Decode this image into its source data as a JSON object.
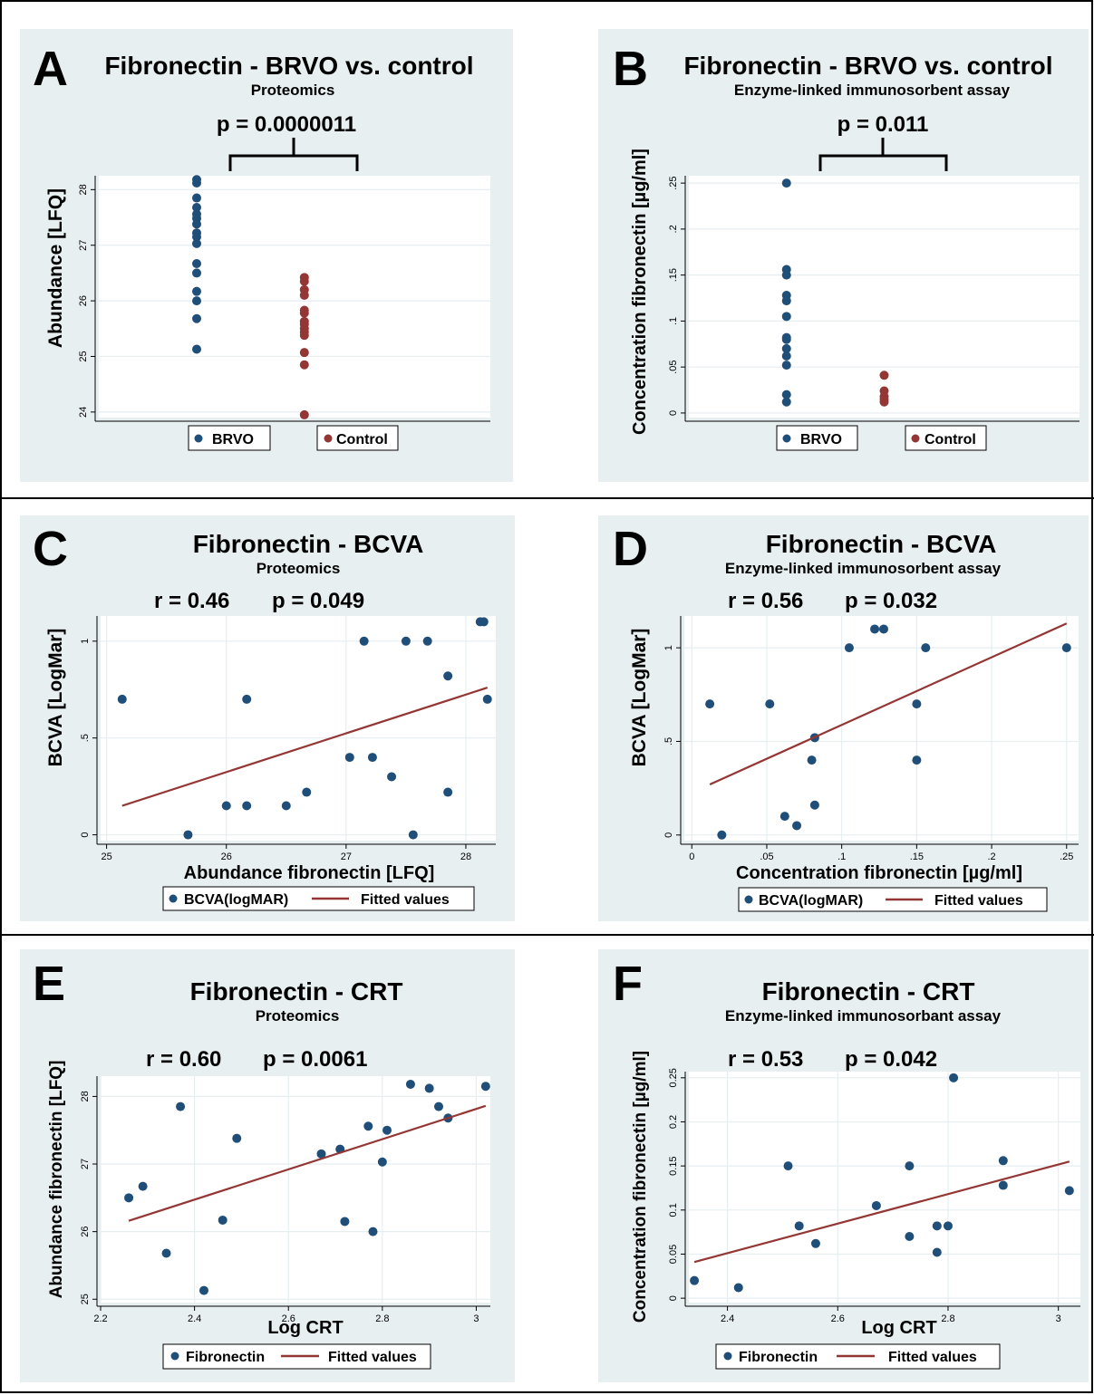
{
  "colors": {
    "panel_bg": "#e8eff1",
    "plot_bg": "#ffffff",
    "grid": "#e6eef0",
    "brvo": "#1f4e79",
    "control": "#943634",
    "point": "#1f4e79",
    "fit": "#943634",
    "frame": "#000000"
  },
  "panels": [
    {
      "letter": "A",
      "title": "Fibronectin - BRVO vs. control",
      "subtitle": "Proteomics",
      "stat": "p = 0.0000011",
      "ylabel": "Abundance [LFQ]",
      "xlabel": "",
      "legend": [
        {
          "label": "BRVO",
          "kind": "dot",
          "color": "#1f4e79"
        },
        {
          "label": "Control",
          "kind": "dot",
          "color": "#943634"
        }
      ]
    },
    {
      "letter": "B",
      "title": "Fibronectin - BRVO vs. control",
      "subtitle": "Enzyme-linked immunosorbent assay",
      "stat": "p = 0.011",
      "ylabel": "Concentration fibronectin [µg/ml]",
      "xlabel": "",
      "legend": [
        {
          "label": "BRVO",
          "kind": "dot",
          "color": "#1f4e79"
        },
        {
          "label": "Control",
          "kind": "dot",
          "color": "#943634"
        }
      ]
    },
    {
      "letter": "C",
      "title": "Fibronectin - BCVA",
      "subtitle": "Proteomics",
      "stat_r": "r = 0.46",
      "stat_p": "p = 0.049",
      "ylabel": "BCVA [LogMar]",
      "xlabel": "Abundance fibronectin [LFQ]",
      "legend": [
        {
          "label": "BCVA(logMAR)",
          "kind": "dot",
          "color": "#1f4e79"
        },
        {
          "label": "Fitted values",
          "kind": "line",
          "color": "#943634"
        }
      ]
    },
    {
      "letter": "D",
      "title": "Fibronectin - BCVA",
      "subtitle": "Enzyme-linked immunosorbent assay",
      "stat_r": "r = 0.56",
      "stat_p": "p = 0.032",
      "ylabel": "BCVA [LogMar]",
      "xlabel": "Concentration fibronectin [µg/ml]",
      "legend": [
        {
          "label": "BCVA(logMAR)",
          "kind": "dot",
          "color": "#1f4e79"
        },
        {
          "label": "Fitted values",
          "kind": "line",
          "color": "#943634"
        }
      ]
    },
    {
      "letter": "E",
      "title": "Fibronectin - CRT",
      "subtitle": "Proteomics",
      "stat_r": "r = 0.60",
      "stat_p": "p = 0.0061",
      "ylabel": "Abundance fibronectin [LFQ]",
      "xlabel": "Log CRT",
      "legend": [
        {
          "label": "Fibronectin",
          "kind": "dot",
          "color": "#1f4e79"
        },
        {
          "label": "Fitted values",
          "kind": "line",
          "color": "#943634"
        }
      ]
    },
    {
      "letter": "F",
      "title": "Fibronectin - CRT",
      "subtitle": "Enzyme-linked immunosorbant assay",
      "stat_r": "r = 0.53",
      "stat_p": "p = 0.042",
      "ylabel": "Concentration fibronectin [µg/ml]",
      "xlabel": "Log CRT",
      "legend": [
        {
          "label": "Fibronectin",
          "kind": "dot",
          "color": "#1f4e79"
        },
        {
          "label": "Fitted values",
          "kind": "line",
          "color": "#943634"
        }
      ]
    }
  ],
  "chart_data": [
    {
      "panel": "A",
      "type": "scatter",
      "subtype": "strip",
      "title": "Fibronectin - BRVO vs. control",
      "subtitle": "Proteomics",
      "ylabel": "Abundance [LFQ]",
      "ylim": [
        23.9,
        28.25
      ],
      "xlim": [
        0,
        4
      ],
      "yticks": [
        24,
        25,
        26,
        27,
        28
      ],
      "ytick_labels": [
        "24",
        "25",
        "26",
        "27",
        "28"
      ],
      "grid": true,
      "legend_position": "bottom",
      "series": [
        {
          "name": "BRVO",
          "color": "#1f4e79",
          "x": 1,
          "values": [
            28.18,
            28.12,
            27.85,
            27.68,
            27.56,
            27.48,
            27.38,
            27.22,
            27.15,
            27.03,
            26.67,
            26.5,
            26.17,
            26.0,
            25.68,
            25.13
          ]
        },
        {
          "name": "Control",
          "color": "#943634",
          "x": 2.1,
          "values": [
            26.42,
            26.35,
            26.2,
            26.1,
            25.83,
            25.78,
            25.63,
            25.58,
            25.5,
            25.44,
            25.38,
            25.07,
            24.85,
            23.95
          ]
        }
      ]
    },
    {
      "panel": "B",
      "type": "scatter",
      "subtype": "strip",
      "title": "Fibronectin - BRVO vs. control",
      "subtitle": "Enzyme-linked immunosorbent assay",
      "ylabel": "Concentration fibronectin [µg/ml]",
      "ylim": [
        -0.005,
        0.258
      ],
      "xlim": [
        0,
        4
      ],
      "yticks": [
        0,
        0.05,
        0.1,
        0.15,
        0.2,
        0.25
      ],
      "ytick_labels": [
        "0",
        ".05",
        ".1",
        ".15",
        ".2",
        ".25"
      ],
      "grid": true,
      "legend_position": "bottom",
      "series": [
        {
          "name": "BRVO",
          "color": "#1f4e79",
          "x": 1,
          "values": [
            0.25,
            0.156,
            0.15,
            0.128,
            0.122,
            0.105,
            0.082,
            0.08,
            0.07,
            0.062,
            0.052,
            0.02,
            0.012
          ]
        },
        {
          "name": "Control",
          "color": "#943634",
          "x": 2,
          "values": [
            0.041,
            0.024,
            0.018,
            0.015,
            0.012
          ]
        }
      ]
    },
    {
      "panel": "C",
      "type": "scatter",
      "title": "Fibronectin - BCVA",
      "subtitle": "Proteomics",
      "xlabel": "Abundance fibronectin [LFQ]",
      "ylabel": "BCVA [LogMar]",
      "xlim": [
        24.95,
        28.25
      ],
      "ylim": [
        -0.03,
        1.13
      ],
      "xticks": [
        25,
        26,
        27,
        28
      ],
      "xtick_labels": [
        "25",
        "26",
        "27",
        "28"
      ],
      "yticks": [
        0,
        0.5,
        1
      ],
      "ytick_labels": [
        "0",
        ".5",
        "1"
      ],
      "grid": true,
      "legend_position": "bottom",
      "series": [
        {
          "name": "BCVA(logMAR)",
          "color": "#1f4e79",
          "x": [
            25.13,
            25.68,
            26.0,
            26.17,
            26.17,
            26.5,
            26.67,
            27.03,
            27.15,
            27.22,
            27.38,
            27.5,
            27.56,
            27.68,
            27.85,
            27.85,
            28.12,
            28.15,
            28.18
          ],
          "y": [
            0.7,
            0.0,
            0.15,
            0.7,
            0.15,
            0.15,
            0.22,
            0.4,
            1.0,
            0.4,
            0.3,
            1.0,
            0.0,
            1.0,
            0.82,
            0.22,
            1.1,
            1.1,
            0.7
          ]
        },
        {
          "name": "Fitted values",
          "color": "#943634",
          "kind": "line",
          "x": [
            25.13,
            28.18
          ],
          "y": [
            0.15,
            0.76
          ]
        }
      ]
    },
    {
      "panel": "D",
      "type": "scatter",
      "title": "Fibronectin - BCVA",
      "subtitle": "Enzyme-linked immunosorbent assay",
      "xlabel": "Concentration fibronectin [µg/ml]",
      "ylabel": "BCVA [LogMar]",
      "xlim": [
        -0.005,
        0.258
      ],
      "ylim": [
        -0.03,
        1.17
      ],
      "xticks": [
        0,
        0.05,
        0.1,
        0.15,
        0.2,
        0.25
      ],
      "xtick_labels": [
        "0",
        ".05",
        ".1",
        ".15",
        ".2",
        ".25"
      ],
      "yticks": [
        0,
        0.5,
        1
      ],
      "ytick_labels": [
        "0",
        ".5",
        "1"
      ],
      "grid": true,
      "legend_position": "bottom",
      "series": [
        {
          "name": "BCVA(logMAR)",
          "color": "#1f4e79",
          "x": [
            0.012,
            0.02,
            0.052,
            0.062,
            0.07,
            0.08,
            0.082,
            0.082,
            0.105,
            0.122,
            0.128,
            0.15,
            0.15,
            0.156,
            0.25
          ],
          "y": [
            0.7,
            0.0,
            0.7,
            0.1,
            0.05,
            0.4,
            0.52,
            0.16,
            1.0,
            1.1,
            1.1,
            0.7,
            0.4,
            1.0,
            1.0
          ]
        },
        {
          "name": "Fitted values",
          "color": "#943634",
          "kind": "line",
          "x": [
            0.012,
            0.25
          ],
          "y": [
            0.27,
            1.13
          ]
        }
      ]
    },
    {
      "panel": "E",
      "type": "scatter",
      "title": "Fibronectin - CRT",
      "subtitle": "Proteomics",
      "xlabel": "Log CRT",
      "ylabel": "Abundance fibronectin [LFQ]",
      "xlim": [
        2.2,
        3.03
      ],
      "ylim": [
        24.95,
        28.3
      ],
      "xticks": [
        2.2,
        2.4,
        2.6,
        2.8,
        3.0
      ],
      "xtick_labels": [
        "2.2",
        "2.4",
        "2.6",
        "2.8",
        "3"
      ],
      "yticks": [
        25,
        26,
        27,
        28
      ],
      "ytick_labels": [
        "25",
        "26",
        "27",
        "28"
      ],
      "grid": true,
      "legend_position": "bottom",
      "series": [
        {
          "name": "Fibronectin",
          "color": "#1f4e79",
          "x": [
            2.26,
            2.29,
            2.34,
            2.37,
            2.42,
            2.46,
            2.49,
            2.67,
            2.71,
            2.72,
            2.77,
            2.78,
            2.8,
            2.81,
            2.86,
            2.9,
            2.92,
            2.94,
            3.02
          ],
          "y": [
            26.5,
            26.67,
            25.68,
            27.85,
            25.13,
            26.17,
            27.38,
            27.15,
            27.22,
            26.15,
            27.56,
            26.0,
            27.03,
            27.5,
            28.18,
            28.12,
            27.85,
            27.68,
            28.15
          ]
        },
        {
          "name": "Fitted values",
          "color": "#943634",
          "kind": "line",
          "x": [
            2.26,
            3.02
          ],
          "y": [
            26.16,
            27.86
          ]
        }
      ]
    },
    {
      "panel": "F",
      "type": "scatter",
      "title": "Fibronectin - CRT",
      "subtitle": "Enzyme-linked immunosorbant assay",
      "xlabel": "Log CRT",
      "ylabel": "Concentration fibronectin [µg/ml]",
      "xlim": [
        2.33,
        3.04
      ],
      "ylim": [
        -0.005,
        0.257
      ],
      "xticks": [
        2.4,
        2.6,
        2.8,
        3.0
      ],
      "xtick_labels": [
        "2.4",
        "2.6",
        "2.8",
        "3"
      ],
      "yticks": [
        0,
        0.05,
        0.1,
        0.15,
        0.2,
        0.25
      ],
      "ytick_labels": [
        "0",
        "0.05",
        "0.1",
        "0.15",
        "0.2",
        "0.25"
      ],
      "grid": true,
      "legend_position": "bottom",
      "series": [
        {
          "name": "Fibronectin",
          "color": "#1f4e79",
          "x": [
            2.34,
            2.42,
            2.51,
            2.53,
            2.56,
            2.67,
            2.73,
            2.73,
            2.78,
            2.78,
            2.8,
            2.81,
            2.9,
            2.9,
            3.02
          ],
          "y": [
            0.02,
            0.012,
            0.15,
            0.082,
            0.062,
            0.105,
            0.15,
            0.07,
            0.082,
            0.052,
            0.082,
            0.25,
            0.156,
            0.128,
            0.122
          ]
        },
        {
          "name": "Fitted values",
          "color": "#943634",
          "kind": "line",
          "x": [
            2.34,
            3.02
          ],
          "y": [
            0.041,
            0.155
          ]
        }
      ]
    }
  ]
}
